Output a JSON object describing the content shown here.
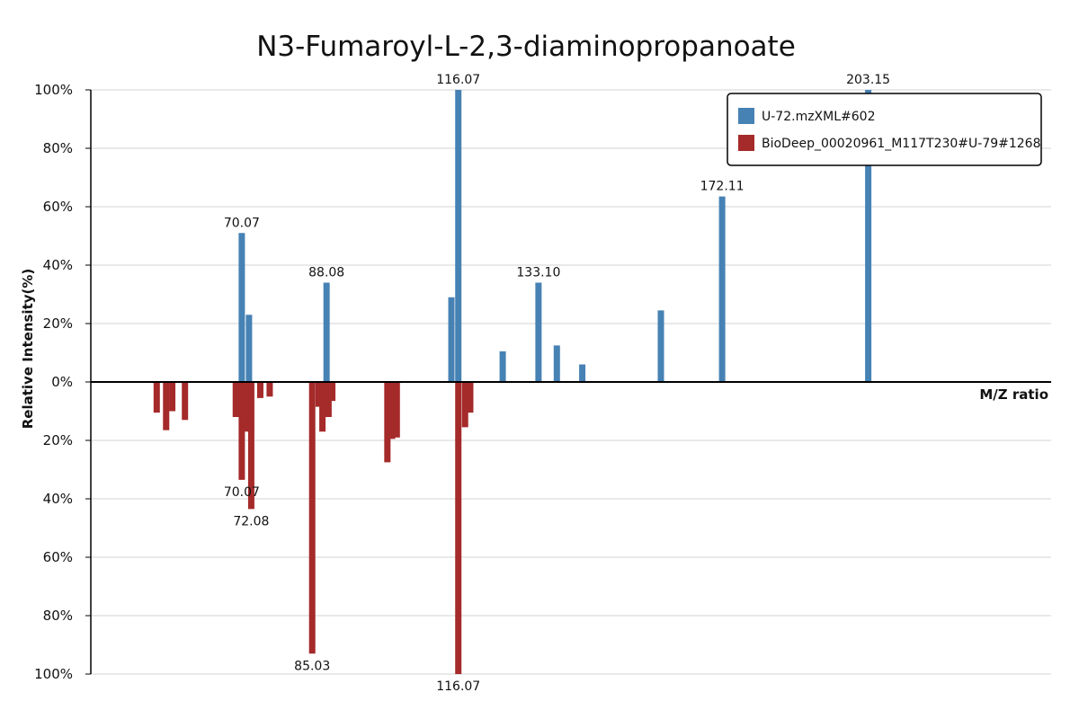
{
  "chart_data": {
    "type": "bar",
    "title": "N3-Fumaroyl-L-2,3-diaminopropanoate",
    "xlabel": "M/Z ratio",
    "ylabel": "Relative Intensity(%)",
    "xlim": [
      38,
      242
    ],
    "ylim": [
      -100,
      100
    ],
    "ytick_values": [
      100,
      80,
      60,
      40,
      20,
      0,
      -20,
      -40,
      -60,
      -80,
      -100
    ],
    "ytick_labels": [
      "100%",
      "80%",
      "60%",
      "40%",
      "20%",
      "0%",
      "20%",
      "40%",
      "60%",
      "80%",
      "100%"
    ],
    "grid": true,
    "legend_position": "top-right",
    "colors": {
      "query": "#4682b4",
      "reference": "#a52a2a"
    },
    "series": [
      {
        "name": "U-72.mzXML#602",
        "color": "#4682b4",
        "peaks": [
          {
            "mz": 70.07,
            "intensity": 51,
            "label": "70.07"
          },
          {
            "mz": 71.6,
            "intensity": 23
          },
          {
            "mz": 88.08,
            "intensity": 34,
            "label": "88.08"
          },
          {
            "mz": 114.6,
            "intensity": 29
          },
          {
            "mz": 116.07,
            "intensity": 100,
            "label": "116.07"
          },
          {
            "mz": 125.5,
            "intensity": 10.5
          },
          {
            "mz": 133.1,
            "intensity": 34,
            "label": "133.10"
          },
          {
            "mz": 137.0,
            "intensity": 12.5
          },
          {
            "mz": 142.4,
            "intensity": 6
          },
          {
            "mz": 159.1,
            "intensity": 24.5
          },
          {
            "mz": 172.11,
            "intensity": 63.5,
            "label": "172.11"
          },
          {
            "mz": 203.15,
            "intensity": 100,
            "label": "203.15"
          }
        ]
      },
      {
        "name": "BioDeep_00020961_M117T230#U-79#1268",
        "color": "#a52a2a",
        "peaks": [
          {
            "mz": 52.0,
            "intensity": 10.5
          },
          {
            "mz": 54.0,
            "intensity": 16.5
          },
          {
            "mz": 55.3,
            "intensity": 10
          },
          {
            "mz": 58.0,
            "intensity": 13
          },
          {
            "mz": 68.8,
            "intensity": 12
          },
          {
            "mz": 70.07,
            "intensity": 33.5,
            "label": "70.07"
          },
          {
            "mz": 71.2,
            "intensity": 17
          },
          {
            "mz": 72.08,
            "intensity": 43.5,
            "label": "72.08"
          },
          {
            "mz": 74.0,
            "intensity": 5.5
          },
          {
            "mz": 76.0,
            "intensity": 5
          },
          {
            "mz": 85.03,
            "intensity": 93,
            "label": "85.03"
          },
          {
            "mz": 86.4,
            "intensity": 8.5
          },
          {
            "mz": 87.2,
            "intensity": 17
          },
          {
            "mz": 88.5,
            "intensity": 12
          },
          {
            "mz": 89.3,
            "intensity": 6.5
          },
          {
            "mz": 101.0,
            "intensity": 27.5
          },
          {
            "mz": 102.0,
            "intensity": 19.5
          },
          {
            "mz": 103.0,
            "intensity": 19
          },
          {
            "mz": 116.07,
            "intensity": 100,
            "label": "116.07"
          },
          {
            "mz": 117.5,
            "intensity": 15.5
          },
          {
            "mz": 118.6,
            "intensity": 10.5
          }
        ]
      }
    ]
  }
}
